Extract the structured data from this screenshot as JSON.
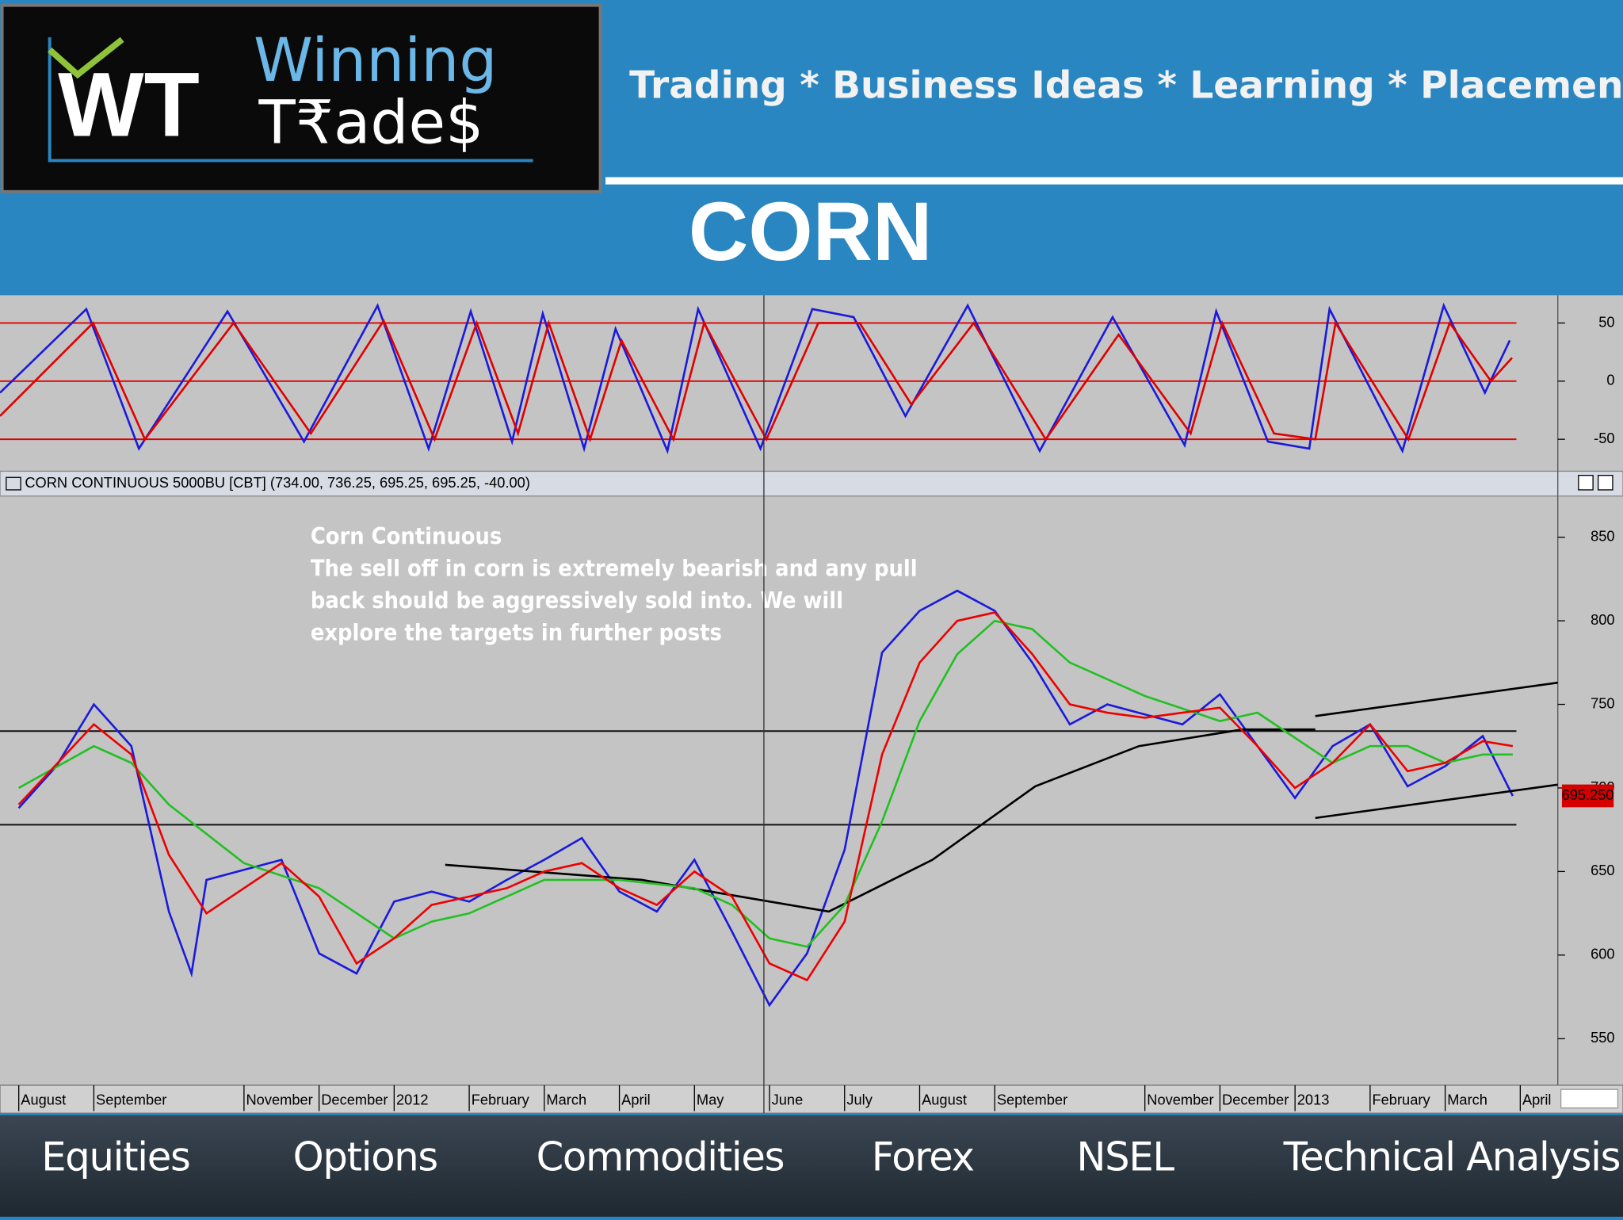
{
  "header": {
    "logo_mark": "WT",
    "logo_line1": "Winning",
    "logo_line2": "T₹ade$",
    "tagline": "Trading * Business Ideas * Learning * Placements",
    "title": "CORN"
  },
  "chart_data": [
    {
      "type": "line",
      "xlim": [
        -0.25,
        20.5
      ],
      "ylim": [
        -73,
        73
      ],
      "yticks": [
        50,
        0,
        -50
      ],
      "reference_lines": [
        50,
        0,
        -50
      ],
      "reference_color": "#e00000",
      "series": [
        {
          "color": "#1a1adc",
          "x": [
            -0.25,
            0.9,
            1.6,
            2.78,
            3.8,
            4.78,
            5.46,
            6.02,
            6.57,
            6.98,
            7.53,
            7.95,
            8.64,
            9.05,
            9.88,
            10.57,
            11.12,
            11.81,
            12.64,
            13.6,
            14.57,
            15.53,
            15.95,
            16.64,
            17.19,
            17.46,
            18.43,
            18.98,
            19.53,
            19.86
          ],
          "values": [
            -10,
            62,
            -58,
            60,
            -52,
            65,
            -58,
            60,
            -52,
            58,
            -58,
            45,
            -60,
            62,
            -58,
            62,
            55,
            -30,
            65,
            -60,
            55,
            -55,
            60,
            -52,
            -58,
            62,
            -60,
            65,
            -10,
            35
          ]
        },
        {
          "color": "#e00000",
          "x": [
            -0.25,
            0.99,
            1.68,
            2.86,
            3.89,
            4.86,
            5.54,
            6.1,
            6.65,
            7.06,
            7.61,
            8.03,
            8.72,
            9.13,
            9.96,
            10.65,
            11.2,
            11.89,
            12.72,
            13.68,
            14.65,
            15.61,
            16.03,
            16.72,
            17.27,
            17.54,
            18.51,
            19.06,
            19.61,
            19.89
          ],
          "values": [
            -30,
            50,
            -50,
            50,
            -45,
            52,
            -50,
            50,
            -45,
            50,
            -50,
            35,
            -50,
            50,
            -50,
            50,
            50,
            -20,
            50,
            -50,
            40,
            -45,
            50,
            -45,
            -50,
            50,
            -50,
            50,
            0,
            20
          ]
        }
      ]
    },
    {
      "type": "line",
      "title": "CORN CONTINUOUS 5000BU [CBT] (734.00, 736.25, 695.25, 695.25, -40.00)",
      "annotation": [
        "Corn Continuous",
        "The sell off in corn is extremely bearish and any pull",
        "back should be aggressively sold into. We will",
        "explore the targets in further posts"
      ],
      "xlim": [
        -0.25,
        20.5
      ],
      "ylim": [
        524,
        874
      ],
      "yticks": [
        550,
        600,
        650,
        700,
        750,
        800,
        850
      ],
      "xticks": [
        {
          "value": 0,
          "label": "August"
        },
        {
          "value": 1,
          "label": "September"
        },
        {
          "value": 3,
          "label": "November"
        },
        {
          "value": 4,
          "label": "December"
        },
        {
          "value": 5,
          "label": "2012"
        },
        {
          "value": 6,
          "label": "February"
        },
        {
          "value": 7,
          "label": "March"
        },
        {
          "value": 8,
          "label": "April"
        },
        {
          "value": 9,
          "label": "May"
        },
        {
          "value": 10,
          "label": "June"
        },
        {
          "value": 11,
          "label": "July"
        },
        {
          "value": 12,
          "label": "August"
        },
        {
          "value": 13,
          "label": "September"
        },
        {
          "value": 15,
          "label": "November"
        },
        {
          "value": 16,
          "label": "December"
        },
        {
          "value": 17,
          "label": "2013"
        },
        {
          "value": 18,
          "label": "February"
        },
        {
          "value": 19,
          "label": "March"
        },
        {
          "value": 20,
          "label": "April"
        }
      ],
      "reference_lines": [
        678,
        734
      ],
      "reference_color": "#111111",
      "last_value": {
        "value": 695.25,
        "label": "695.250"
      },
      "last_value_color": "#d40000",
      "series": [
        {
          "color": "#1a1adc",
          "x": [
            0,
            0.5,
            1,
            1.5,
            2,
            2.3,
            2.5,
            3,
            3.5,
            4,
            4.5,
            5,
            5.5,
            6,
            6.5,
            7,
            7.5,
            8,
            8.5,
            9,
            9.5,
            10,
            10.5,
            11,
            11.5,
            12,
            12.5,
            13,
            13.5,
            14,
            14.5,
            15,
            15.5,
            16,
            16.5,
            17,
            17.5,
            18,
            18.5,
            19,
            19.5,
            19.9
          ],
          "values": [
            688,
            713,
            750,
            725,
            626,
            589,
            645,
            651,
            657,
            601,
            589,
            632,
            638,
            632,
            645,
            657,
            670,
            638,
            626,
            657,
            614,
            570,
            601,
            663,
            781,
            806,
            818,
            806,
            775,
            738,
            750,
            744,
            738,
            756,
            725,
            694,
            725,
            738,
            701,
            713,
            731,
            695.25
          ]
        },
        {
          "color": "#000000",
          "x": [
            5.68,
            8.3,
            10.79,
            12.17,
            13.54,
            14.92,
            16.3,
            17.27
          ],
          "values": [
            654,
            645,
            626,
            657,
            701,
            725,
            735,
            735
          ]
        },
        {
          "color": "#22c022",
          "x": [
            0,
            1,
            1.5,
            2,
            3,
            4,
            5,
            5.5,
            6,
            7,
            8,
            9,
            9.5,
            10,
            10.5,
            11,
            11.5,
            12,
            12.5,
            13,
            13.5,
            14,
            15,
            16,
            16.5,
            17,
            17.5,
            18,
            18.5,
            19,
            19.5,
            19.9
          ],
          "values": [
            700,
            725,
            715,
            690,
            655,
            640,
            610,
            620,
            625,
            645,
            645,
            640,
            630,
            610,
            605,
            630,
            680,
            740,
            780,
            800,
            795,
            775,
            755,
            740,
            745,
            730,
            715,
            725,
            725,
            715,
            720,
            720
          ]
        },
        {
          "color": "#ee0000",
          "x": [
            0,
            1,
            1.5,
            2,
            2.5,
            3,
            3.5,
            4,
            4.5,
            5,
            5.5,
            6,
            6.5,
            7,
            7.5,
            8,
            8.5,
            9,
            9.5,
            10,
            10.5,
            11,
            11.5,
            12,
            12.5,
            13,
            13.5,
            14,
            14.5,
            15,
            15.5,
            16,
            16.5,
            17,
            17.5,
            18,
            18.5,
            19,
            19.5,
            19.9
          ],
          "values": [
            690,
            738,
            720,
            660,
            625,
            640,
            655,
            635,
            595,
            610,
            630,
            635,
            640,
            650,
            655,
            640,
            630,
            650,
            635,
            595,
            585,
            620,
            720,
            775,
            800,
            805,
            780,
            750,
            745,
            742,
            745,
            748,
            725,
            700,
            715,
            738,
            710,
            715,
            728,
            725
          ]
        },
        {
          "color": "#000000",
          "x": [
            17.27,
            20.5
          ],
          "values": [
            743,
            763
          ]
        },
        {
          "color": "#000000",
          "x": [
            17.27,
            20.5
          ],
          "values": [
            682,
            702
          ]
        }
      ]
    }
  ],
  "nav": [
    "Equities",
    "Options",
    "Commodities",
    "Forex",
    "NSEL",
    "Technical Analysis"
  ]
}
